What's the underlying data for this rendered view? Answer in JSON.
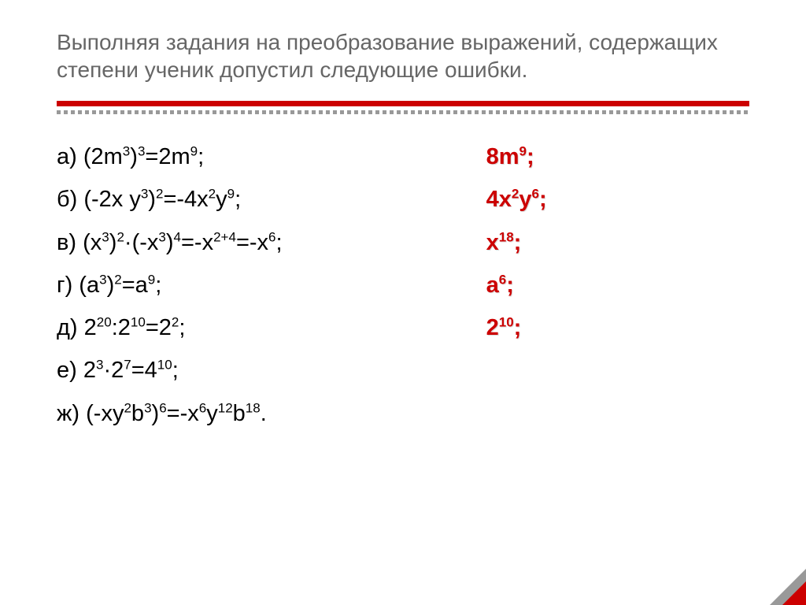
{
  "slide": {
    "title": "Выполняя задания на преобразование выражений, содержащих степени ученик допустил следующие ошибки.",
    "title_color": "#666666",
    "title_fontsize": 28,
    "accent_bar_color": "#cc0000",
    "dot_color": "#999999",
    "body_fontsize": 29,
    "sup_fontsize": 17,
    "answer_color": "#cc0000",
    "answer_fontweight": "700",
    "background_color": "#ffffff",
    "items": [
      {
        "label": "а)",
        "expr": [
          {
            "t": "(2m"
          },
          {
            "sup": "3"
          },
          {
            "t": ")"
          },
          {
            "sup": "3"
          },
          {
            "t": "=2m"
          },
          {
            "sup": "9"
          },
          {
            "t": ";"
          }
        ],
        "answer": [
          {
            "t": "8m"
          },
          {
            "sup": "9"
          },
          {
            "t": ";"
          }
        ]
      },
      {
        "label": "б)",
        "expr": [
          {
            "t": "(-2x y"
          },
          {
            "sup": "3"
          },
          {
            "t": ")"
          },
          {
            "sup": "2"
          },
          {
            "t": "=-4x"
          },
          {
            "sup": "2"
          },
          {
            "t": "y"
          },
          {
            "sup": "9"
          },
          {
            "t": ";"
          }
        ],
        "answer": [
          {
            "t": " 4x"
          },
          {
            "sup": "2"
          },
          {
            "t": "y"
          },
          {
            "sup": "6"
          },
          {
            "t": ";"
          }
        ]
      },
      {
        "label": "в)",
        "expr": [
          {
            "t": "(x"
          },
          {
            "sup": "3"
          },
          {
            "t": ")"
          },
          {
            "sup": "2"
          },
          {
            "t": "·(-x"
          },
          {
            "sup": "3"
          },
          {
            "t": ")"
          },
          {
            "sup": "4"
          },
          {
            "t": "=-x"
          },
          {
            "sup": "2+4"
          },
          {
            "t": "=-x"
          },
          {
            "sup": "6"
          },
          {
            "t": ";"
          }
        ],
        "answer": [
          {
            "t": " x"
          },
          {
            "sup": "18"
          },
          {
            "t": ";"
          }
        ]
      },
      {
        "label": "г)",
        "expr": [
          {
            "t": "(a"
          },
          {
            "sup": "3"
          },
          {
            "t": ")"
          },
          {
            "sup": "2"
          },
          {
            "t": "=a"
          },
          {
            "sup": "9"
          },
          {
            "t": ";"
          }
        ],
        "answer": [
          {
            "t": "a"
          },
          {
            "sup": "6"
          },
          {
            "t": ";"
          }
        ]
      },
      {
        "label": "д)",
        "expr": [
          {
            "t": "2"
          },
          {
            "sup": "20"
          },
          {
            "t": ":2"
          },
          {
            "sup": "10"
          },
          {
            "t": "=2"
          },
          {
            "sup": "2"
          },
          {
            "t": ";"
          }
        ],
        "answer": [
          {
            "t": " 2"
          },
          {
            "sup": "10"
          },
          {
            "t": ";"
          }
        ]
      },
      {
        "label": "е)",
        "expr": [
          {
            "t": "2"
          },
          {
            "sup": "3"
          },
          {
            "t": "·2"
          },
          {
            "sup": "7"
          },
          {
            "t": "=4"
          },
          {
            "sup": "10"
          },
          {
            "t": ";"
          }
        ],
        "answer": null
      },
      {
        "label": "ж)",
        "expr": [
          {
            "t": "(-xy"
          },
          {
            "sup": "2"
          },
          {
            "t": "b"
          },
          {
            "sup": "3"
          },
          {
            "t": ")"
          },
          {
            "sup": "6"
          },
          {
            "t": "=-x"
          },
          {
            "sup": "6"
          },
          {
            "t": "y"
          },
          {
            "sup": "12"
          },
          {
            "t": "b"
          },
          {
            "sup": "18"
          },
          {
            "t": "."
          }
        ],
        "answer": null
      }
    ]
  }
}
